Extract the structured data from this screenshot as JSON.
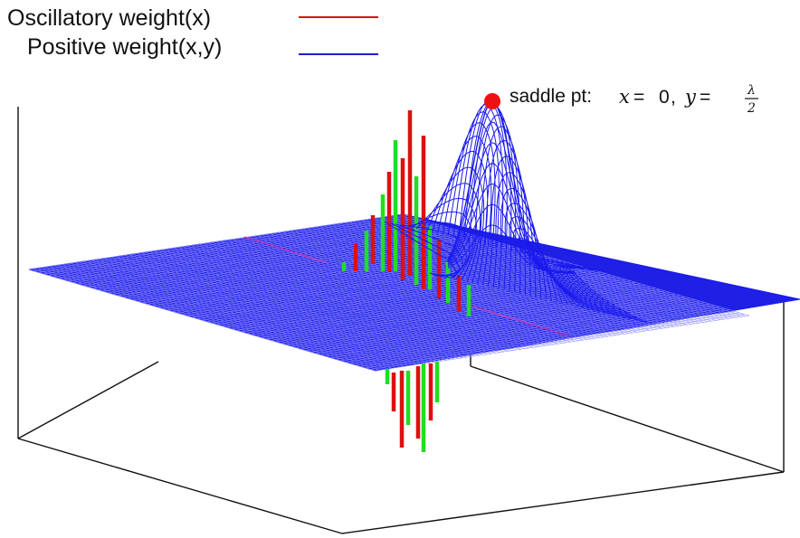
{
  "chart_data": {
    "type": "surface3d",
    "legend": {
      "placement": "top-left",
      "entries": [
        {
          "name": "Oscillatory weight(x)",
          "color": "#e01010"
        },
        {
          "name": "Positive weight(x,y)",
          "color": "#2020cc"
        }
      ]
    },
    "annotation": {
      "prefix": "saddle pt: ",
      "x_var": "x",
      "equals": " = ",
      "x_value": "0",
      "separator": ", ",
      "y_var": "y",
      "frac_num": "λ",
      "frac_den": "2",
      "marker_color": "#ee1111"
    },
    "colors": {
      "surface": "#1a1aee",
      "oscillatory_a": "#dd1010",
      "oscillatory_b": "#22dd22",
      "axes": "#111111"
    }
  }
}
